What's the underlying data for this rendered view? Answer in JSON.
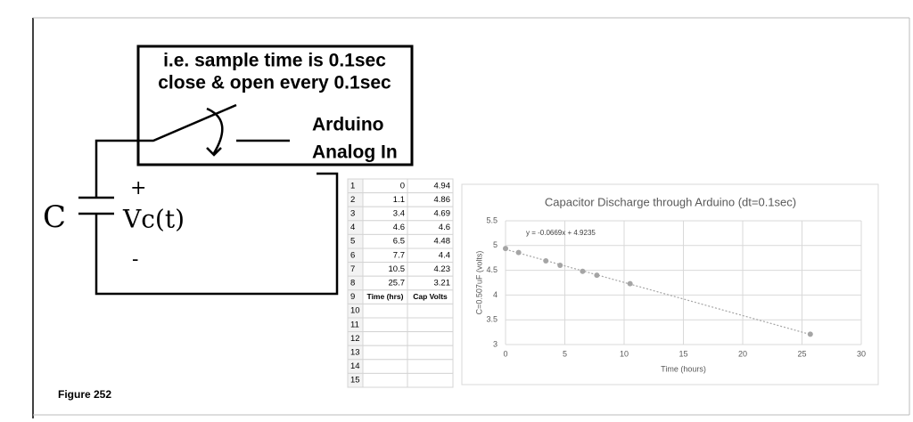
{
  "diagram": {
    "box_lines": [
      "i.e. sample time is 0.1sec",
      "close & open every 0.1sec"
    ],
    "output_lines": [
      "Arduino",
      "Analog In"
    ],
    "capacitor": "C",
    "plus": "+",
    "voltage": "Vc(t)",
    "minus": "-"
  },
  "table": {
    "rows": [
      [
        1,
        0,
        4.94
      ],
      [
        2,
        1.1,
        4.86
      ],
      [
        3,
        3.4,
        4.69
      ],
      [
        4,
        4.6,
        4.6
      ],
      [
        5,
        6.5,
        4.48
      ],
      [
        6,
        7.7,
        4.4
      ],
      [
        7,
        10.5,
        4.23
      ],
      [
        8,
        25.7,
        3.21
      ],
      [
        9,
        "Time (hrs)",
        "Cap Volts"
      ],
      [
        10
      ],
      [
        11
      ],
      [
        12
      ],
      [
        13
      ],
      [
        14
      ],
      [
        15
      ]
    ]
  },
  "chart_data": {
    "type": "scatter",
    "title": "Capacitor Discharge through Arduino (dt=0.1sec)",
    "x": [
      0,
      1.1,
      3.4,
      4.6,
      6.5,
      7.7,
      10.5,
      25.7
    ],
    "values": [
      4.94,
      4.86,
      4.69,
      4.6,
      4.48,
      4.4,
      4.23,
      3.21
    ],
    "color": "#a5a5a5",
    "xlim": [
      0,
      30
    ],
    "ylim": [
      3,
      5.5
    ],
    "xticks": [
      0,
      5,
      10,
      15,
      20,
      25,
      30
    ],
    "yticks": [
      3,
      3.5,
      4,
      4.5,
      5,
      5.5
    ],
    "grid": true,
    "xlabel": "Time (hours)",
    "ylabel": "C=0.507uF (volts)",
    "trendline": {
      "slope": -0.0669,
      "intercept": 4.9235,
      "label": "y = -0.0669x + 4.9235"
    }
  },
  "caption": "Figure 252"
}
